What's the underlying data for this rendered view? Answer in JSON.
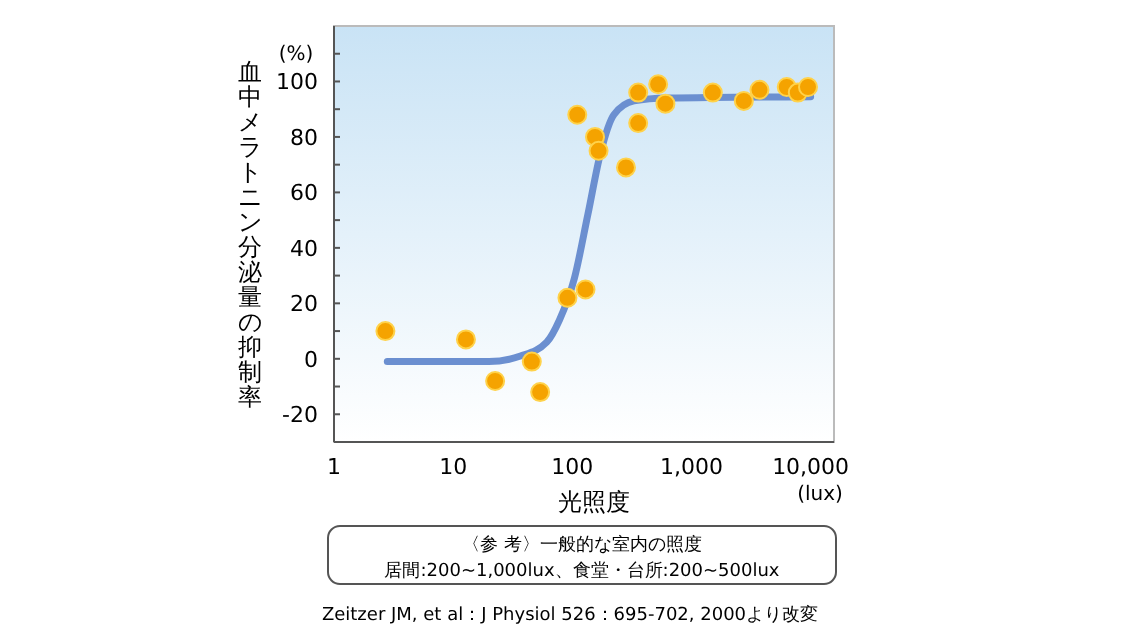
{
  "chart_data": {
    "type": "scatter",
    "xlabel": "光照度",
    "ylabel": "血中メラトニン分泌量の抑制率",
    "log": "x",
    "xlim": [
      1,
      15700
    ],
    "ylim": [
      -30,
      120
    ],
    "xticks": [
      {
        "value": 1,
        "label": "1"
      },
      {
        "value": 10,
        "label": "10"
      },
      {
        "value": 100,
        "label": "100"
      },
      {
        "value": 1000,
        "label": "1,000"
      },
      {
        "value": 10000,
        "label": "10,000"
      }
    ],
    "yticks": [
      {
        "value": -30,
        "label": null
      },
      -20,
      {
        "value": -10,
        "label": null
      },
      0,
      {
        "value": 10,
        "label": null
      },
      20,
      {
        "value": 30,
        "label": null
      },
      40,
      {
        "value": 50,
        "label": null
      },
      60,
      {
        "value": 70,
        "label": null
      },
      80,
      {
        "value": 90,
        "label": null
      },
      100,
      {
        "value": 110,
        "label": null
      }
    ],
    "grid": false,
    "series": [
      {
        "marker": "circle",
        "color": "#f5a300",
        "x": [
          2.7,
          12.8,
          22.5,
          45.7,
          53.7,
          91,
          110,
          129,
          155,
          166,
          282,
          357,
          357,
          525,
          604,
          1510,
          2750,
          3720,
          6300,
          7800,
          9500
        ],
        "values": [
          10,
          7,
          -8,
          -1,
          -12,
          22,
          88,
          25,
          80,
          75,
          69,
          96,
          85,
          99,
          92,
          96,
          93,
          97,
          98,
          96,
          98
        ]
      },
      {
        "type": "line",
        "color": "#6b8fd0",
        "line_style": "solid",
        "x": [
          2.8,
          20,
          36.7,
          61,
          78,
          104,
          135,
          172,
          223,
          330,
          620,
          10000
        ],
        "values": [
          -1,
          -1,
          1,
          6,
          14,
          29,
          52,
          74,
          88,
          93,
          94,
          94.5
        ]
      }
    ],
    "annotations": [
      "(%)",
      "(lux)",
      "〈参 考〉一般的な室内の照度",
      "居間:200~1,000lux、食堂・台所:200~500lux",
      "Zeitzer JM, et al：J Physiol 526：695-702, 2000より改変"
    ]
  }
}
